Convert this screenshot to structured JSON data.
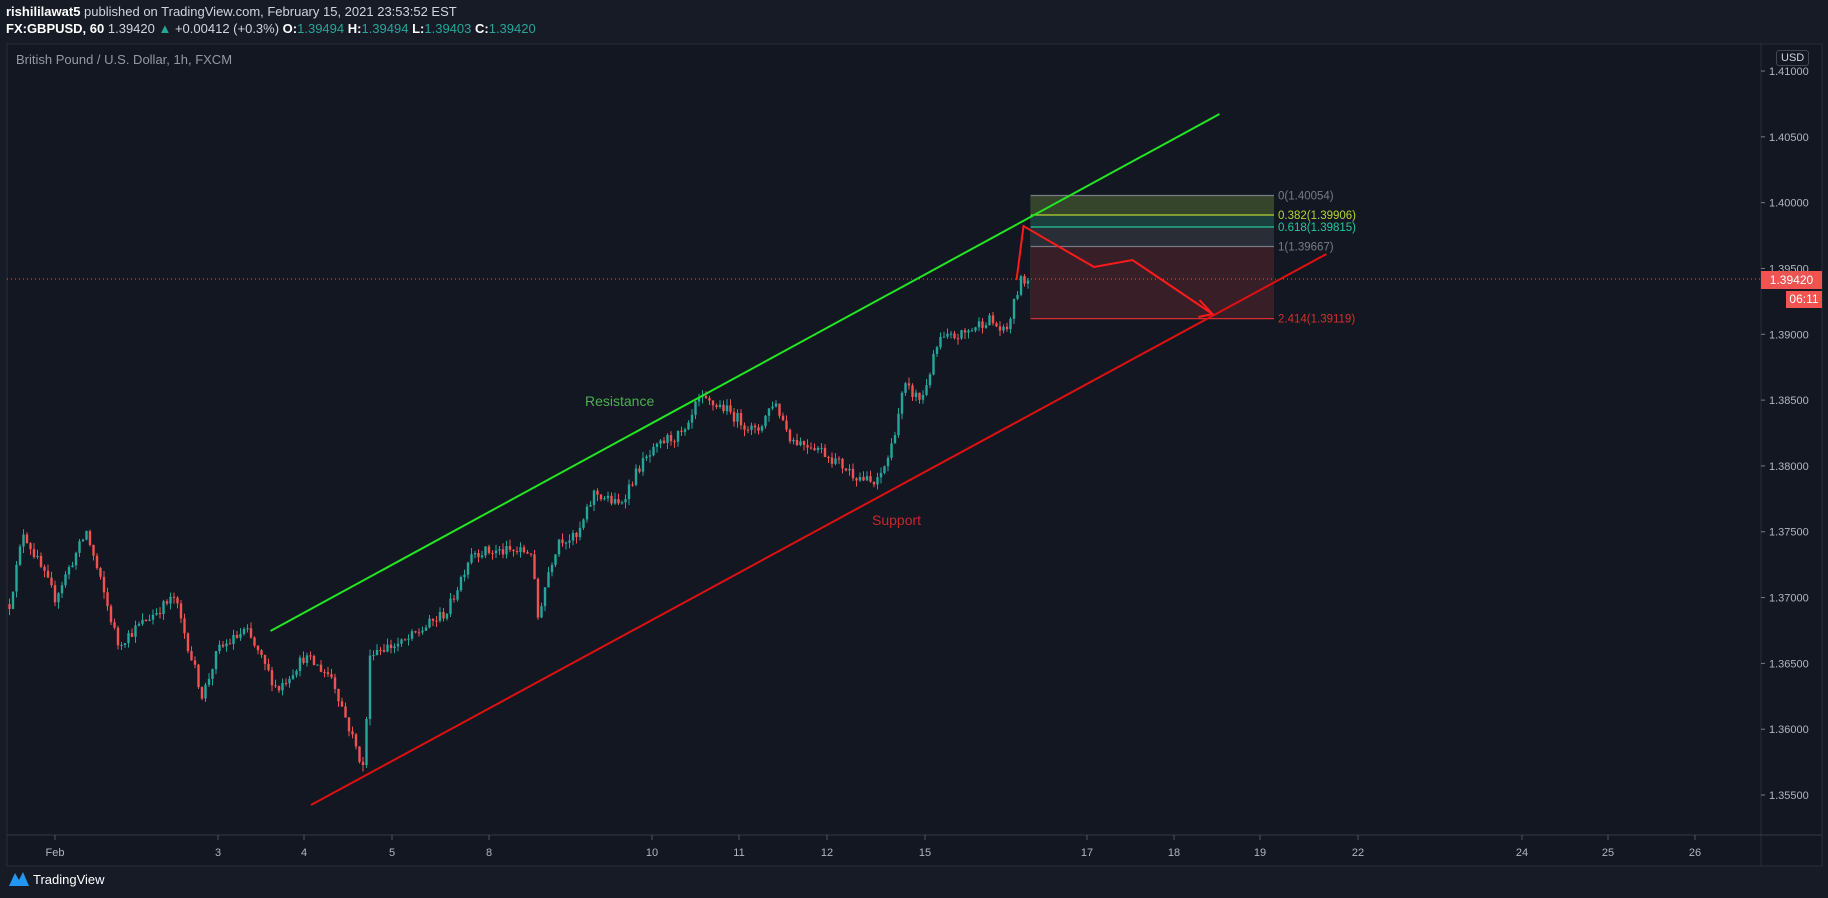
{
  "header": {
    "author": "rishililawat5",
    "published_text": "published on TradingView.com, February 15, 2021 23:53:52 EST",
    "symbol": "FX:GBPUSD, 60",
    "last": "1.39420",
    "change": "+0.00412 (+0.3%)",
    "o_label": "O:",
    "o": "1.39494",
    "h_label": "H:",
    "h": "1.39494",
    "l_label": "L:",
    "l": "1.39403",
    "c_label": "C:",
    "c": "1.39420"
  },
  "chart_title": "British Pound / U.S. Dollar, 1h, FXCM",
  "currency_badge": "USD",
  "current_price_label": "1.39420",
  "countdown": "06:11",
  "footer_logo": "TradingView",
  "colors": {
    "up": "#26a69a",
    "down": "#ef5350",
    "resistance": "#22e622",
    "support": "#e01010",
    "background": "#131722"
  },
  "chart_data": {
    "type": "candlestick",
    "interval": "1h",
    "ylim": [
      1.3525,
      1.4125
    ],
    "price_ticks": [
      "1.41000",
      "1.40500",
      "1.40000",
      "1.39500",
      "1.39000",
      "1.38500",
      "1.38000",
      "1.37500",
      "1.37000",
      "1.36500",
      "1.36000",
      "1.35500"
    ],
    "time_ticks": [
      "Feb",
      "3",
      "4",
      "5",
      "8",
      "10",
      "11",
      "12",
      "15",
      "17",
      "18",
      "19",
      "22",
      "24",
      "25",
      "26"
    ],
    "close_path": [
      [
        "01-29 11:00",
        1.3695
      ],
      [
        "01-29 15:00",
        1.375
      ],
      [
        "02-01 00:00",
        1.37
      ],
      [
        "02-01 09:00",
        1.375
      ],
      [
        "02-01 18:00",
        1.3665
      ],
      [
        "02-02 06:00",
        1.369
      ],
      [
        "02-02 11:00",
        1.37
      ],
      [
        "02-02 19:00",
        1.3625
      ],
      [
        "02-03 00:00",
        1.366
      ],
      [
        "02-03 08:00",
        1.3675
      ],
      [
        "02-03 17:00",
        1.363
      ],
      [
        "02-04 00:00",
        1.3655
      ],
      [
        "02-04 08:00",
        1.364
      ],
      [
        "02-04 13:00",
        1.36
      ],
      [
        "02-04 17:00",
        1.357
      ],
      [
        "02-04 19:00",
        1.366
      ],
      [
        "02-05 03:00",
        1.3665
      ],
      [
        "02-05 16:00",
        1.369
      ],
      [
        "02-07 19:00",
        1.3735
      ],
      [
        "02-08 07:00",
        1.3735
      ],
      [
        "02-08 12:00",
        1.3735
      ],
      [
        "02-08 14:00",
        1.3685
      ],
      [
        "02-08 17:00",
        1.372
      ],
      [
        "02-08 20:00",
        1.3745
      ],
      [
        "02-09 02:00",
        1.3745
      ],
      [
        "02-09 07:00",
        1.378
      ],
      [
        "02-09 14:00",
        1.377
      ],
      [
        "02-09 20:00",
        1.38
      ],
      [
        "02-10 04:00",
        1.382
      ],
      [
        "02-10 10:00",
        1.3825
      ],
      [
        "02-10 13:00",
        1.385
      ],
      [
        "02-10 20:00",
        1.3845
      ],
      [
        "02-11 05:00",
        1.3825
      ],
      [
        "02-11 10:00",
        1.385
      ],
      [
        "02-11 15:00",
        1.382
      ],
      [
        "02-11 22:00",
        1.3815
      ],
      [
        "02-12 07:00",
        1.3795
      ],
      [
        "02-12 14:00",
        1.3785
      ],
      [
        "02-12 18:00",
        1.381
      ],
      [
        "02-14 18:00",
        1.386
      ],
      [
        "02-14 23:00",
        1.385
      ],
      [
        "02-15 04:00",
        1.3895
      ],
      [
        "02-15 11:00",
        1.39
      ],
      [
        "02-15 18:00",
        1.3912
      ],
      [
        "02-15 23:00",
        1.39
      ],
      [
        "02-16 02:00",
        1.392
      ],
      [
        "02-16 04:00",
        1.394
      ],
      [
        "02-16 07:00",
        1.3942
      ]
    ],
    "resistance_line": {
      "label": "Resistance",
      "from": [
        "02-03 15:00",
        1.36746
      ],
      "to": [
        "02-18 13:00",
        1.40673
      ]
    },
    "support_line": {
      "label": "Support",
      "from": [
        "02-04 02:00",
        1.35424
      ],
      "to": [
        "02-19 19:00",
        1.3961
      ]
    },
    "projection_path": [
      [
        "02-16 03:00",
        1.39412
      ],
      [
        "02-16 05:00",
        1.39822
      ],
      [
        "02-17 02:00",
        1.39511
      ],
      [
        "02-17 13:00",
        1.39564
      ],
      [
        "02-18 11:00",
        1.39154
      ]
    ],
    "fibonacci": {
      "from": "02-16 07:00",
      "to": "02-19 04:00",
      "levels": [
        {
          "ratio": "0",
          "price": 1.40054,
          "label": "0(1.40054)",
          "color": "#787b86",
          "fill": "#3a4a2c"
        },
        {
          "ratio": "0.382",
          "price": 1.39906,
          "label": "0.382(1.39906)",
          "color": "#b4d334",
          "fill": "#1c4440"
        },
        {
          "ratio": "0.618",
          "price": 1.39815,
          "label": "0.618(1.39815)",
          "color": "#26c6a0",
          "fill": "#2c3038"
        },
        {
          "ratio": "1",
          "price": 1.39667,
          "label": "1(1.39667)",
          "color": "#787b86",
          "fill": "#3d1f27"
        },
        {
          "ratio": "2.414",
          "price": 1.39119,
          "label": "2.414(1.39119)",
          "color": "#d32f2f",
          "fill": null
        }
      ]
    },
    "last_price": 1.3942
  }
}
